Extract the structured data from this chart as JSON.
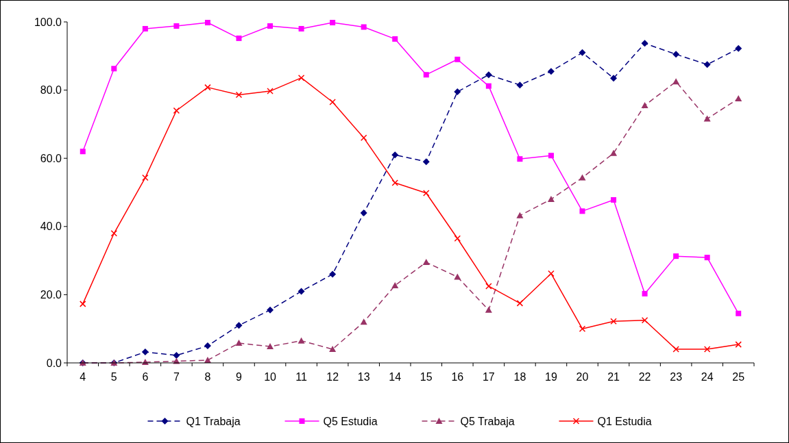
{
  "chart_data": {
    "type": "line",
    "categories": [
      "4",
      "5",
      "6",
      "7",
      "8",
      "9",
      "10",
      "11",
      "12",
      "13",
      "14",
      "15",
      "16",
      "17",
      "18",
      "19",
      "20",
      "21",
      "22",
      "23",
      "24",
      "25"
    ],
    "ylim": [
      0,
      100
    ],
    "yticks": [
      {
        "value": 0,
        "label": "0.0"
      },
      {
        "value": 20,
        "label": "20.0"
      },
      {
        "value": 40,
        "label": "40.0"
      },
      {
        "value": 60,
        "label": "60.0"
      },
      {
        "value": 80,
        "label": "80.0"
      },
      {
        "value": 100,
        "label": "100.0"
      }
    ],
    "grid": false,
    "legend": "bottom",
    "series": [
      {
        "name": "Q1 Trabaja",
        "color": "#000080",
        "marker": "diamond",
        "line_style": "dashed",
        "values": [
          0,
          0,
          3.2,
          2.2,
          5,
          11,
          15.5,
          21,
          26,
          44,
          61,
          59,
          79.5,
          84.5,
          81.5,
          85.5,
          91,
          83.5,
          93.7,
          90.5,
          87.5,
          92.2
        ]
      },
      {
        "name": "Q5 Estudia",
        "color": "#ff00ff",
        "marker": "square",
        "line_style": "solid",
        "values": [
          62,
          86.3,
          98,
          98.8,
          99.8,
          95.2,
          98.8,
          98,
          99.8,
          98.5,
          95,
          84.5,
          89,
          81.2,
          59.8,
          60.8,
          44.5,
          47.8,
          20.3,
          31.3,
          30.9,
          14.5
        ]
      },
      {
        "name": "Q5 Trabaja",
        "color": "#993366",
        "marker": "triangle",
        "line_style": "dashed",
        "values": [
          0,
          0,
          0.2,
          0.5,
          0.8,
          5.8,
          4.8,
          6.5,
          4,
          12,
          22.7,
          29.5,
          25.2,
          15.5,
          43.2,
          48,
          54.3,
          61.5,
          75.5,
          82.5,
          71.6,
          77.5
        ]
      },
      {
        "name": "Q1 Estudia",
        "color": "#ff0000",
        "marker": "cross",
        "line_style": "solid",
        "values": [
          17.3,
          38,
          54.3,
          74,
          80.8,
          78.6,
          79.7,
          83.6,
          76.5,
          66,
          52.8,
          49.8,
          36.5,
          22.5,
          17.5,
          26.2,
          10,
          12.2,
          12.5,
          4,
          4,
          5.4
        ]
      }
    ]
  }
}
